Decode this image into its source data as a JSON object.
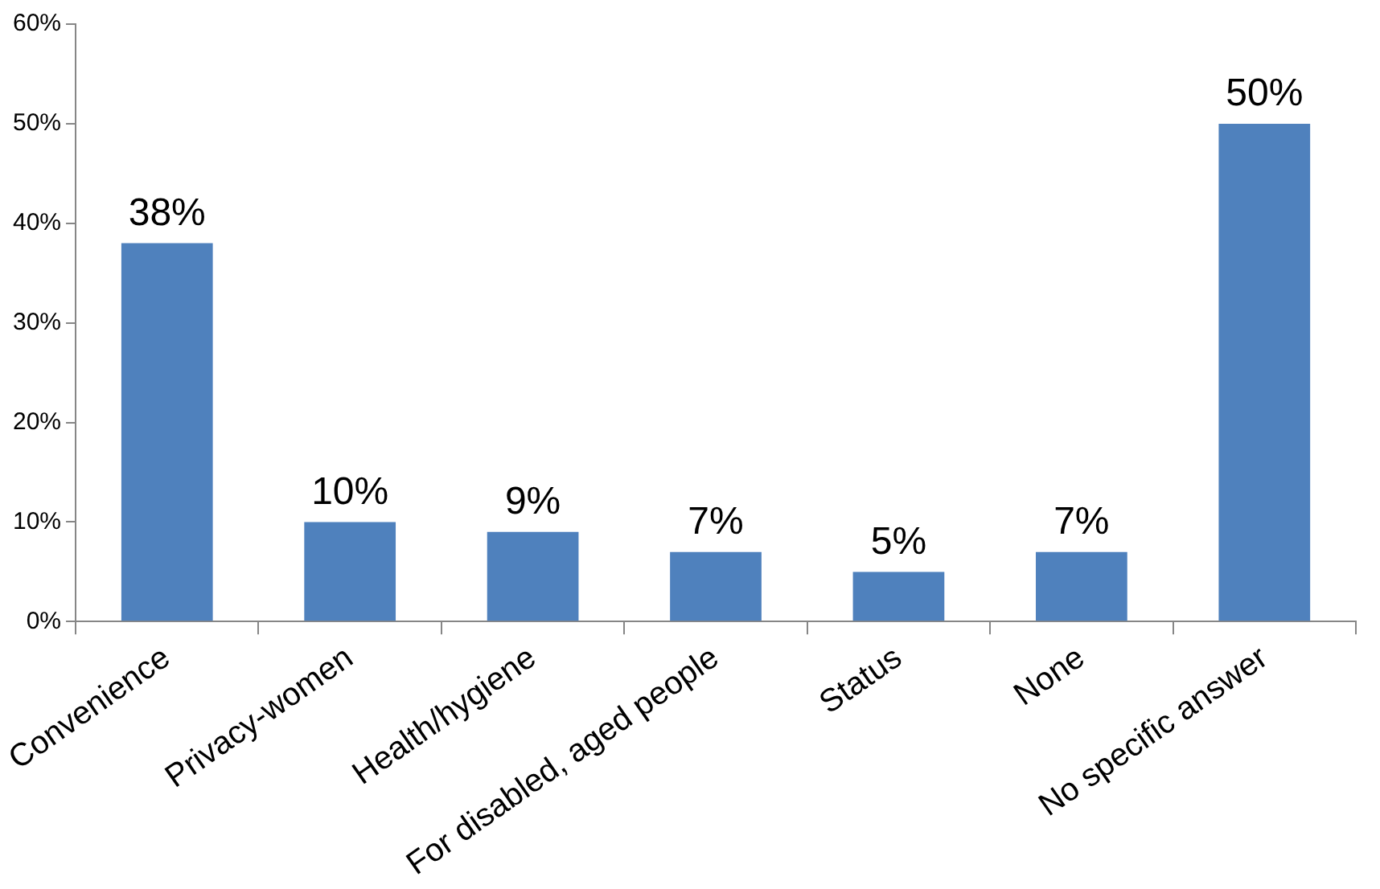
{
  "chart_data": {
    "type": "bar",
    "categories": [
      "Convenience",
      "Privacy-women",
      "Health/hygiene",
      "For disabled, aged people",
      "Status",
      "None",
      "No specific answer"
    ],
    "values": [
      38,
      10,
      9,
      7,
      5,
      7,
      50
    ],
    "value_labels": [
      "38%",
      "10%",
      "9%",
      "7%",
      "5%",
      "7%",
      "50%"
    ],
    "color": "#4f81bd",
    "ylim": [
      0,
      60
    ],
    "yticks": [
      {
        "value": 0,
        "label": "0%"
      },
      {
        "value": 10,
        "label": "10%"
      },
      {
        "value": 20,
        "label": "20%"
      },
      {
        "value": 30,
        "label": "30%"
      },
      {
        "value": 40,
        "label": "40%"
      },
      {
        "value": 50,
        "label": "50%"
      },
      {
        "value": 60,
        "label": "60%"
      }
    ],
    "grid": false,
    "legend": false
  }
}
